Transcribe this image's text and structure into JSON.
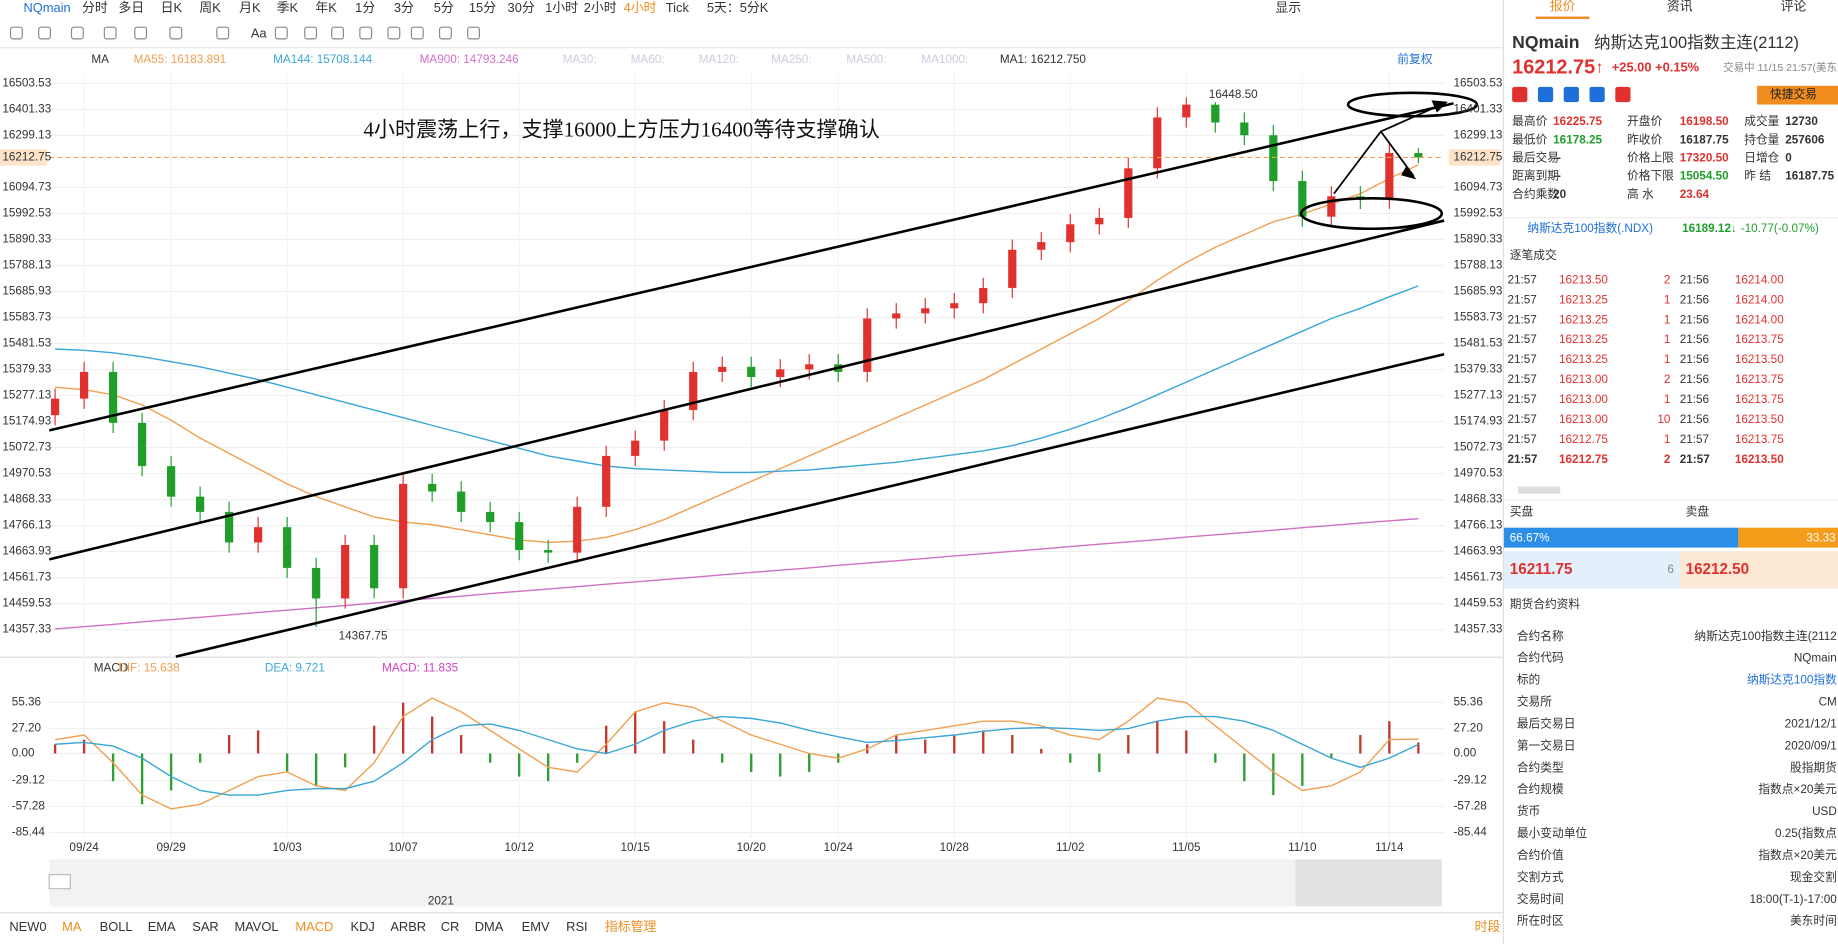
{
  "toolbar": {
    "symbol": "NQmain",
    "periods": [
      "分时",
      "多日",
      "日K",
      "周K",
      "月K",
      "季K",
      "年K",
      "1分",
      "3分",
      "5分",
      "15分",
      "30分",
      "1小时",
      "2小时",
      "4小时",
      "Tick",
      "5天：5分K"
    ],
    "active": 14,
    "display": "显示",
    "font_tool": "Aa"
  },
  "chart_header": {
    "indicator": "MA",
    "inactive": [
      "MA30:",
      "MA60:",
      "MA120:",
      "MA250:",
      "MA500:",
      "MA1000:"
    ],
    "ma1": "MA1: 16212.750",
    "adjust": "前复权"
  },
  "chart_data": [
    {
      "type": "candlestick",
      "annotation": "4小时震荡上行，支撑16000上方压力16400等待支撑确认",
      "categories": [
        null,
        "09/24",
        null,
        null,
        "09/29",
        null,
        null,
        null,
        "10/03",
        null,
        null,
        null,
        "10/07",
        null,
        null,
        null,
        "10/12",
        null,
        null,
        null,
        "10/15",
        null,
        null,
        null,
        "10/20",
        null,
        null,
        "10/24",
        null,
        null,
        null,
        "10/28",
        null,
        null,
        null,
        "11/02",
        null,
        null,
        null,
        "11/05",
        null,
        null,
        null,
        "11/10",
        null,
        null,
        "11/14",
        null
      ],
      "open": [
        15200,
        15265,
        15370,
        15170,
        15000,
        14880,
        14820,
        14700,
        14760,
        14600,
        14480,
        14690,
        14520,
        14930,
        14900,
        14820,
        14780,
        14670,
        14660,
        14840,
        15040,
        15100,
        15220,
        15370,
        15390,
        15350,
        15380,
        15400,
        15370,
        15580,
        15600,
        15620,
        15640,
        15700,
        15850,
        15880,
        15950,
        15975,
        16170,
        16370,
        16420,
        16350,
        16300,
        16120,
        15980,
        16060,
        16050,
        16230
      ],
      "high": [
        15305,
        15410,
        15410,
        15210,
        15040,
        14920,
        14860,
        14800,
        14800,
        14640,
        14730,
        14730,
        14970,
        14970,
        14940,
        14860,
        14820,
        14710,
        14880,
        15080,
        15140,
        15260,
        15410,
        15430,
        15430,
        15420,
        15440,
        15440,
        15620,
        15640,
        15660,
        15680,
        15740,
        15890,
        15920,
        15990,
        16015,
        16210,
        16410,
        16448.5,
        16430,
        16390,
        16340,
        16160,
        16100,
        16100,
        16270,
        16250
      ],
      "low": [
        15160,
        15225,
        15130,
        14960,
        14840,
        14780,
        14660,
        14660,
        14560,
        14367.75,
        14440,
        14480,
        14480,
        14860,
        14780,
        14740,
        14630,
        14620,
        14620,
        14800,
        15000,
        15060,
        15180,
        15330,
        15310,
        15310,
        15340,
        15330,
        15330,
        15540,
        15560,
        15580,
        15600,
        15660,
        15810,
        15840,
        15910,
        15935,
        16130,
        16330,
        16310,
        16260,
        16080,
        15940,
        15940,
        16010,
        16010,
        16190
      ],
      "close": [
        15265,
        15370,
        15170,
        15000,
        14880,
        14820,
        14700,
        14760,
        14600,
        14480,
        14690,
        14520,
        14930,
        14900,
        14820,
        14780,
        14670,
        14660,
        14840,
        15040,
        15100,
        15220,
        15370,
        15390,
        15350,
        15380,
        15400,
        15370,
        15580,
        15600,
        15620,
        15640,
        15700,
        15850,
        15880,
        15950,
        15975,
        16170,
        16370,
        16420,
        16350,
        16300,
        16120,
        15980,
        16060,
        16050,
        16230,
        16212.75
      ],
      "up_color": "#e0312f",
      "down_color": "#1f9f2a",
      "series": [
        {
          "name": "MA55: 16183.891",
          "color": "#f0a050",
          "values": [
            15310,
            15300,
            15280,
            15240,
            15180,
            15110,
            15050,
            14990,
            14930,
            14880,
            14840,
            14800,
            14780,
            14770,
            14750,
            14730,
            14710,
            14700,
            14705,
            14720,
            14750,
            14790,
            14840,
            14890,
            14940,
            14990,
            15040,
            15090,
            15140,
            15190,
            15240,
            15290,
            15340,
            15400,
            15460,
            15520,
            15580,
            15650,
            15730,
            15800,
            15860,
            15910,
            15960,
            15990,
            16030,
            16070,
            16130,
            16183.891
          ]
        },
        {
          "name": "MA144: 15708.144",
          "color": "#3aa6d8",
          "values": [
            15460,
            15455,
            15445,
            15430,
            15410,
            15390,
            15365,
            15340,
            15310,
            15280,
            15250,
            15220,
            15190,
            15160,
            15130,
            15100,
            15070,
            15040,
            15020,
            15000,
            14990,
            14985,
            14980,
            14975,
            14975,
            14980,
            14985,
            14995,
            15005,
            15015,
            15030,
            15045,
            15060,
            15080,
            15110,
            15145,
            15185,
            15230,
            15280,
            15330,
            15380,
            15430,
            15480,
            15530,
            15580,
            15620,
            15665,
            15708.144
          ]
        },
        {
          "name": "MA900: 14793.246",
          "color": "#d070c8",
          "values": [
            14360,
            14369,
            14378,
            14388,
            14397,
            14406,
            14415,
            14425,
            14434,
            14443,
            14452,
            14462,
            14471,
            14480,
            14489,
            14499,
            14508,
            14517,
            14526,
            14536,
            14545,
            14554,
            14563,
            14573,
            14582,
            14591,
            14600,
            14610,
            14619,
            14628,
            14637,
            14647,
            14656,
            14665,
            14674,
            14684,
            14693,
            14702,
            14711,
            14721,
            14730,
            14739,
            14748,
            14758,
            14767,
            14776,
            14785,
            14793.246
          ]
        }
      ],
      "ylim": [
        14357.33,
        16503.53
      ],
      "yticks": [
        14357.33,
        14459.53,
        14561.73,
        14663.93,
        14766.13,
        14868.33,
        14970.53,
        15072.73,
        15174.93,
        15277.13,
        15379.33,
        15481.53,
        15583.73,
        15685.93,
        15788.13,
        15890.33,
        15992.53,
        16094.73,
        16299.13,
        16401.33,
        16503.53
      ],
      "last_price": 16212.75,
      "high_label": {
        "value": 16448.5,
        "label": "16448.50"
      },
      "low_label": {
        "value": 14367.75,
        "label": "14367.75"
      },
      "grid": true
    },
    {
      "type": "macd",
      "title": "MACD",
      "series": [
        {
          "name": "DIF: 15.638",
          "color": "#f0a050",
          "values": [
            15,
            20,
            -10,
            -45,
            -60,
            -55,
            -40,
            -25,
            -20,
            -35,
            -40,
            -10,
            40,
            60,
            45,
            25,
            5,
            -15,
            -20,
            10,
            45,
            55,
            50,
            35,
            20,
            10,
            0,
            -5,
            5,
            20,
            25,
            30,
            35,
            35,
            30,
            20,
            15,
            35,
            60,
            55,
            30,
            5,
            -20,
            -40,
            -35,
            -20,
            15,
            15.638
          ]
        },
        {
          "name": "DEA: 9.721",
          "color": "#3aa6d8",
          "values": [
            10,
            12,
            8,
            -5,
            -25,
            -40,
            -45,
            -45,
            -40,
            -38,
            -38,
            -30,
            -10,
            15,
            30,
            32,
            25,
            15,
            5,
            0,
            10,
            25,
            35,
            40,
            38,
            33,
            25,
            18,
            12,
            14,
            17,
            20,
            24,
            27,
            28,
            27,
            25,
            27,
            35,
            40,
            40,
            35,
            25,
            10,
            -5,
            -15,
            -5,
            9.721
          ]
        }
      ],
      "histogram": {
        "name": "MACD: 11.835",
        "color": "#d040c0",
        "up_color": "#c0392b",
        "down_color": "#2e9f32",
        "values": [
          10,
          15,
          -30,
          -55,
          -40,
          -10,
          20,
          25,
          -20,
          -35,
          -15,
          30,
          55,
          40,
          20,
          -10,
          -25,
          -30,
          -10,
          30,
          45,
          35,
          15,
          -10,
          -20,
          -25,
          -20,
          -10,
          10,
          20,
          15,
          20,
          25,
          20,
          5,
          -10,
          -20,
          20,
          35,
          25,
          -10,
          -30,
          -45,
          -35,
          -5,
          20,
          35,
          11.835
        ]
      },
      "ylim": [
        -85.44,
        55.36
      ],
      "yticks": [
        -85.44,
        -57.28,
        -29.12,
        {
          "value": 0,
          "label": "0.00"
        },
        {
          "value": 27.2,
          "label": "27.20"
        },
        55.36
      ]
    }
  ],
  "scroller": {
    "year": "2021"
  },
  "indicators": {
    "tabs": [
      "NEW0",
      "MA",
      "BOLL",
      "EMA",
      "SAR",
      "MAVOL",
      "MACD",
      "KDJ",
      "ARBR",
      "CR",
      "DMA",
      "EMV",
      "RSI",
      "指标管理"
    ],
    "highlight": [
      1,
      6,
      13
    ],
    "period": "时段"
  },
  "panel": {
    "tabs": [
      "报价",
      "资讯",
      "评论"
    ],
    "symbol": "NQmain",
    "name": "纳斯达克100指数主连(2112)",
    "price": "16212.75",
    "arrow": "↑",
    "change": "+25.00 +0.15%",
    "status": "交易中 11/15 21:57(美东",
    "quick_trade": "快捷交易",
    "stats": [
      [
        [
          "最高价",
          "16225.75",
          "#e0312f"
        ],
        [
          "开盘价",
          "16198.50",
          "#e0312f"
        ],
        [
          "成交量",
          "12730",
          "#333"
        ]
      ],
      [
        [
          "最低价",
          "16178.25",
          "#1f9f2a"
        ],
        [
          "昨收价",
          "16187.75",
          "#333"
        ],
        [
          "持仓量",
          "257606",
          "#333"
        ]
      ],
      [
        [
          "最后交易",
          "--",
          "#333"
        ],
        [
          "价格上限",
          "17320.50",
          "#e0312f"
        ],
        [
          "日增仓",
          "0",
          "#333"
        ]
      ],
      [
        [
          "距离到期",
          "--",
          "#333"
        ],
        [
          "价格下限",
          "15054.50",
          "#1f9f2a"
        ],
        [
          "昨 结",
          "16187.75",
          "#333"
        ]
      ],
      [
        [
          "合约乘数",
          "20",
          "#333"
        ],
        [
          "高 水",
          "23.64",
          "#e0312f"
        ]
      ]
    ],
    "index_name": "纳斯达克100指数(.NDX)",
    "index_price": "16189.12↓",
    "index_change": "-10.77(-0.07%)",
    "trades_title": "逐笔成交",
    "trades": [
      [
        "21:57",
        "16213.50",
        "2",
        "21:56",
        "16214.00"
      ],
      [
        "21:57",
        "16213.25",
        "1",
        "21:56",
        "16214.00"
      ],
      [
        "21:57",
        "16213.25",
        "1",
        "21:56",
        "16214.00"
      ],
      [
        "21:57",
        "16213.25",
        "1",
        "21:56",
        "16213.75"
      ],
      [
        "21:57",
        "16213.25",
        "1",
        "21:56",
        "16213.50"
      ],
      [
        "21:57",
        "16213.00",
        "2",
        "21:56",
        "16213.75"
      ],
      [
        "21:57",
        "16213.00",
        "1",
        "21:56",
        "16213.75"
      ],
      [
        "21:57",
        "16213.00",
        "10",
        "21:56",
        "16213.50"
      ],
      [
        "21:57",
        "16212.75",
        "1",
        "21:57",
        "16213.75"
      ],
      [
        "21:57",
        "16212.75",
        "2",
        "21:57",
        "16213.50"
      ]
    ],
    "bid_label": "买盘",
    "ask_label": "卖盘",
    "bid_pct": "66.67%",
    "ask_pct": "33.33",
    "bid_price": "16211.75",
    "bid_size": "6",
    "ask_price": "16212.50",
    "info_title": "期货合约资料",
    "info": [
      [
        "合约名称",
        "纳斯达克100指数主连(2112"
      ],
      [
        "合约代码",
        "NQmain"
      ],
      [
        "标的",
        "纳斯达克100指数"
      ],
      [
        "交易所",
        "CM"
      ],
      [
        "最后交易日",
        "2021/12/1"
      ],
      [
        "第一交易日",
        "2020/09/1"
      ],
      [
        "合约类型",
        "股指期货"
      ],
      [
        "合约规模",
        "指数点×20美元"
      ],
      [
        "货币",
        "USD"
      ],
      [
        "最小变动单位",
        "0.25(指数点"
      ],
      [
        "合约价值",
        "指数点×20美元"
      ],
      [
        "交割方式",
        "现金交割"
      ],
      [
        "交易时间",
        "18:00(T-1)-17:00"
      ],
      [
        "所在时区",
        "美东时间"
      ]
    ]
  }
}
